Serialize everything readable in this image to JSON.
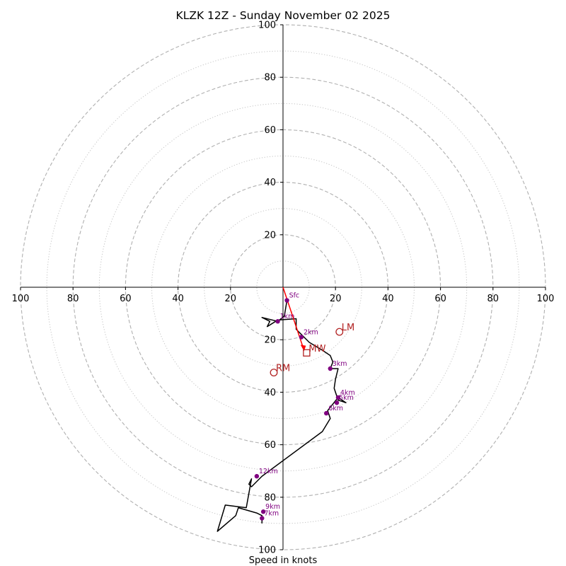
{
  "chart_data": {
    "type": "scatter",
    "title": "KLZK 12Z - Sunday November 02 2025",
    "xlabel": "Speed in knots",
    "xlim": [
      -100,
      100
    ],
    "ylim": [
      -100,
      100
    ],
    "x_ticks": [
      -100,
      -80,
      -60,
      -40,
      -20,
      20,
      40,
      60,
      80,
      100
    ],
    "x_tick_labels": [
      "100",
      "80",
      "60",
      "40",
      "20",
      "20",
      "40",
      "60",
      "80",
      "100"
    ],
    "y_ticks": [
      100,
      80,
      60,
      40,
      20,
      -20,
      -40,
      -60,
      -80,
      -100
    ],
    "y_tick_labels": [
      "100",
      "80",
      "60",
      "40",
      "20",
      "20",
      "40",
      "60",
      "80",
      "100"
    ],
    "rings_major": [
      20,
      40,
      60,
      80,
      100
    ],
    "rings_minor": [
      10,
      30,
      50,
      70,
      90
    ],
    "hodograph": {
      "name": "",
      "color": "#000000",
      "u": [
        1.5,
        0.5,
        -2,
        -8,
        -5,
        -6,
        -2,
        5,
        5,
        7,
        10,
        15,
        18,
        19,
        18,
        21,
        20,
        19.5,
        21,
        24,
        21,
        17,
        18,
        15,
        -8,
        -12,
        -13,
        -12,
        -14,
        -22,
        -25,
        -18,
        -17,
        -10,
        -8,
        -8
      ],
      "v": [
        -5,
        -11,
        -13,
        -11.5,
        -13,
        -15,
        -12.5,
        -12,
        -16,
        -18,
        -21,
        -24,
        -26,
        -28.5,
        -31,
        -31,
        -35,
        -38.5,
        -43,
        -44,
        -42,
        -47,
        -50,
        -55,
        -72,
        -76,
        -75,
        -73,
        -84,
        -83,
        -93,
        -87,
        -84,
        -86,
        -87,
        -90
      ]
    },
    "height_markers": [
      {
        "label": "Sfc",
        "u": 1.5,
        "v": -5
      },
      {
        "label": "1km",
        "u": -2,
        "v": -13
      },
      {
        "label": "2km",
        "u": 7,
        "v": -19
      },
      {
        "label": "3km",
        "u": 18,
        "v": -31
      },
      {
        "label": "4km",
        "u": 21,
        "v": -42
      },
      {
        "label": "5km",
        "u": 20.5,
        "v": -44
      },
      {
        "label": "6km",
        "u": 16.5,
        "v": -48
      },
      {
        "label": "7km",
        "u": -8,
        "v": -88
      },
      {
        "label": "9km",
        "u": -7.5,
        "v": -85.5
      },
      {
        "label": "12km",
        "u": -10,
        "v": -72
      }
    ],
    "shear_vector": {
      "color": "#ff0000",
      "from": [
        0,
        0
      ],
      "to": [
        8,
        -24
      ]
    },
    "storm_motion": [
      {
        "label": "LM",
        "u": 21.5,
        "v": -17,
        "marker": "circle"
      },
      {
        "label": "MW",
        "u": 9,
        "v": -25,
        "marker": "square"
      },
      {
        "label": "RM",
        "u": -3.5,
        "v": -32.5,
        "marker": "circle"
      }
    ],
    "colors": {
      "line": "#000000",
      "markers": "#800080",
      "storm": "#b22222",
      "shear": "#ff0000",
      "rings": "#b0b0b0"
    }
  }
}
